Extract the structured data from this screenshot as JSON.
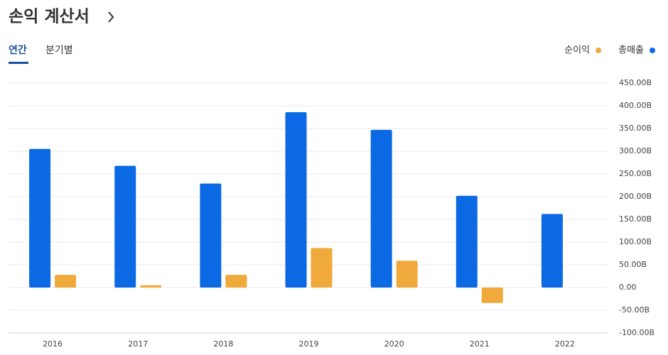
{
  "chart_data": {
    "type": "bar",
    "title": "손익 계산서",
    "tabs": [
      "연간",
      "분기별"
    ],
    "categories": [
      "2016",
      "2017",
      "2018",
      "2019",
      "2020",
      "2021",
      "2022"
    ],
    "series": [
      {
        "name": "순이익",
        "color": "#f0a93b",
        "values": [
          28,
          5,
          28,
          87,
          59,
          -34,
          null
        ]
      },
      {
        "name": "총매출",
        "color": "#0b69e3",
        "values": [
          305,
          268,
          229,
          386,
          347,
          202,
          162
        ]
      }
    ],
    "ylim": [
      -100,
      450
    ],
    "yticks": [
      {
        "value": 450,
        "label": "450.00B"
      },
      {
        "value": 400,
        "label": "400.00B"
      },
      {
        "value": 350,
        "label": "350.00B"
      },
      {
        "value": 300,
        "label": "300.00B"
      },
      {
        "value": 250,
        "label": "250.00B"
      },
      {
        "value": 200,
        "label": "200.00B"
      },
      {
        "value": 150,
        "label": "150.00B"
      },
      {
        "value": 100,
        "label": "100.00B"
      },
      {
        "value": 50,
        "label": "50.00B"
      },
      {
        "value": 0,
        "label": "0.00"
      },
      {
        "value": -50,
        "label": "-50.00B"
      },
      {
        "value": -100,
        "label": "-100.00B"
      }
    ],
    "grid": true
  }
}
